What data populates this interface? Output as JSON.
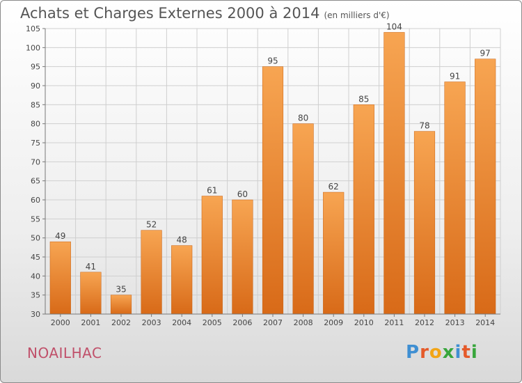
{
  "header": {
    "title": "Achats et Charges Externes 2000 à 2014",
    "subtitle": "(en milliers d'€)"
  },
  "footer": {
    "commune": "NOAILHAC",
    "logo": "Proxiti"
  },
  "colors": {
    "bar_top": "#f7a552",
    "bar_bottom": "#d86a18",
    "bar_stroke": "#c86010",
    "grid": "#cfcfcf",
    "title": "#555555",
    "commune": "#c0506a"
  },
  "chart_data": {
    "type": "bar",
    "title": "Achats et Charges Externes 2000 à 2014",
    "subtitle": "(en milliers d'€)",
    "categories": [
      "2000",
      "2001",
      "2002",
      "2003",
      "2004",
      "2005",
      "2006",
      "2007",
      "2008",
      "2009",
      "2010",
      "2011",
      "2012",
      "2013",
      "2014"
    ],
    "values": [
      49,
      41,
      35,
      52,
      48,
      61,
      60,
      95,
      80,
      62,
      85,
      104,
      78,
      91,
      97
    ],
    "ylim": [
      30,
      105
    ],
    "yticks": [
      30,
      35,
      40,
      45,
      50,
      55,
      60,
      65,
      70,
      75,
      80,
      85,
      90,
      95,
      100,
      105
    ],
    "grid": true,
    "data_labels": true,
    "legend": "none",
    "xlabel": "",
    "ylabel": ""
  }
}
